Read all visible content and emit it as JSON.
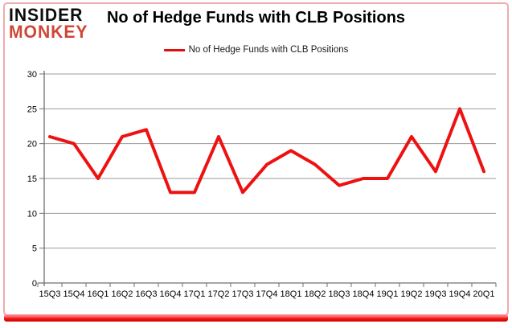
{
  "logo": {
    "line1": "INSIDER",
    "line2": "MONKEY"
  },
  "header": {
    "title": "No of Hedge Funds with CLB Positions"
  },
  "legend": {
    "label": "No of Hedge Funds with CLB Positions"
  },
  "colors": {
    "line_red": "#ee1111",
    "legend_red": "#e01010",
    "logo_red": "#cf4637",
    "border_pink": "#efaaad",
    "grid_gray": "#9b9b9b",
    "axis_gray": "#707070"
  },
  "chart_data": {
    "type": "line",
    "title": "No of Hedge Funds with CLB Positions",
    "categories": [
      "15Q3",
      "15Q4",
      "16Q1",
      "16Q2",
      "16Q3",
      "16Q4",
      "17Q1",
      "17Q2",
      "17Q3",
      "17Q4",
      "18Q1",
      "18Q2",
      "18Q3",
      "18Q4",
      "19Q1",
      "19Q2",
      "19Q3",
      "19Q4",
      "20Q1"
    ],
    "values": [
      21,
      20,
      15,
      21,
      22,
      13,
      13,
      21,
      13,
      17,
      19,
      17,
      14,
      15,
      15,
      21,
      16,
      25,
      16
    ],
    "xlabel": "",
    "ylabel": "",
    "ylim": [
      0,
      30
    ],
    "ytick_step": 5,
    "yticks": [
      0,
      5,
      10,
      15,
      20,
      25,
      30
    ],
    "grid": true,
    "legend_position": "top-center",
    "line_color": "#ee1111",
    "grid_color": "#9b9b9b",
    "axis_color": "#707070",
    "label_color": "#000000"
  }
}
